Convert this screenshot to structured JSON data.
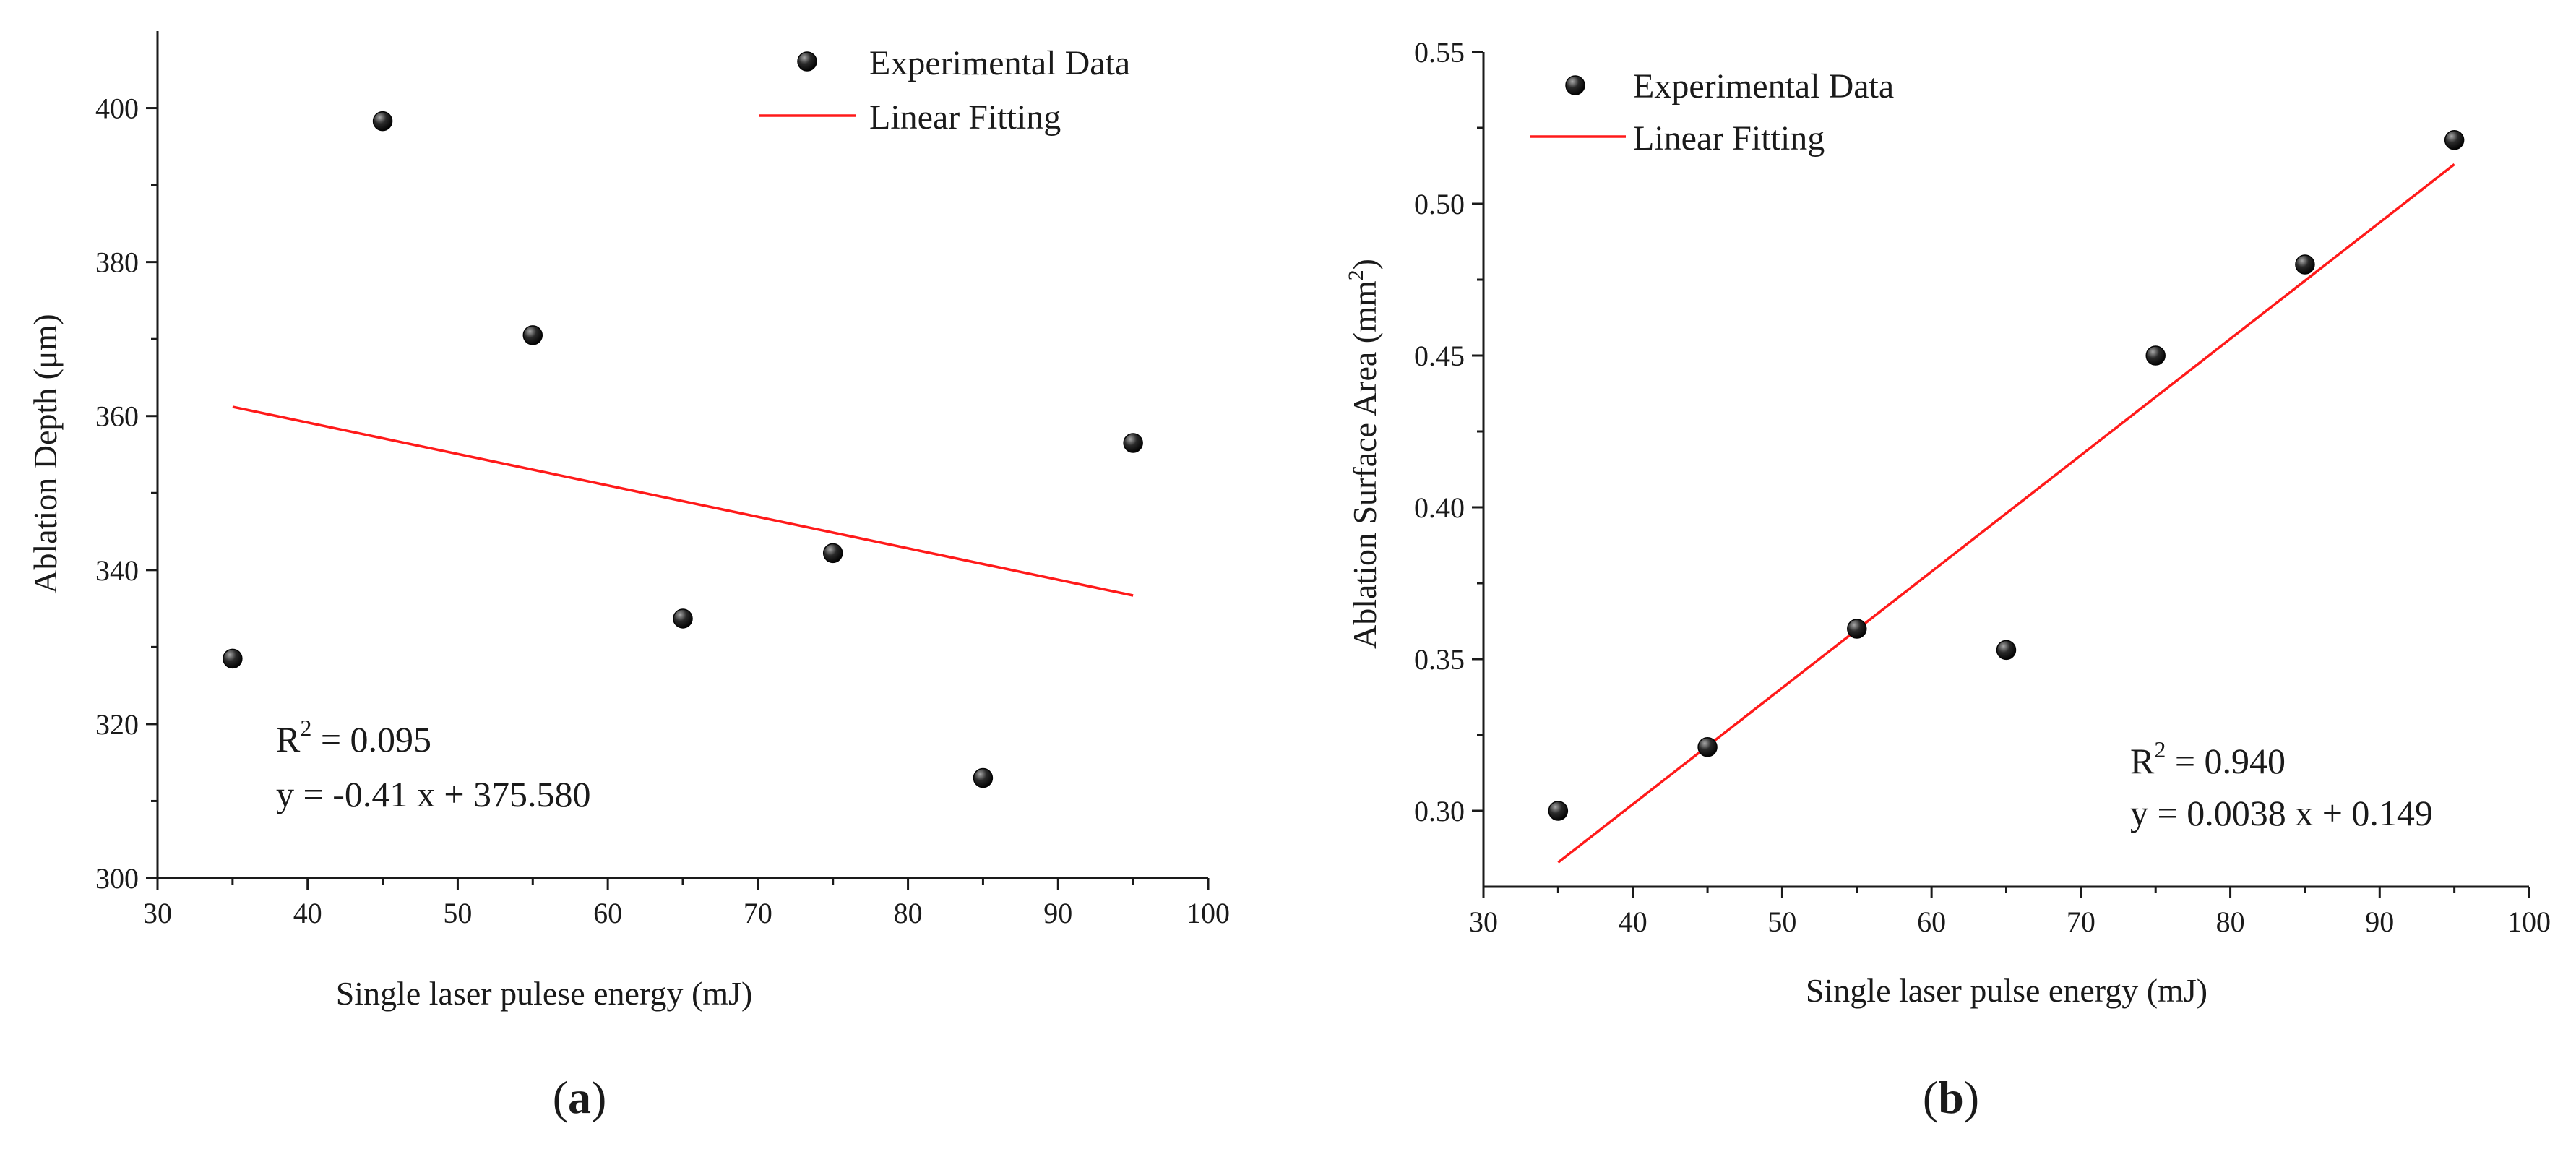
{
  "colors": {
    "fit_line": "#ff1a1a",
    "point_dark": "#050505",
    "point_light": "#9a9a9a",
    "axis": "#1a1a1a"
  },
  "chart_data": [
    {
      "type": "scatter",
      "xlabel": "Single laser pulese energy (mJ)",
      "ylabel": "Ablation Depth (μm)",
      "xlim": [
        30,
        100
      ],
      "ylim": [
        300,
        410
      ],
      "xticks": [
        30,
        40,
        50,
        60,
        70,
        80,
        90,
        100
      ],
      "yticks": [
        300,
        320,
        340,
        360,
        380,
        400
      ],
      "legend_position": "top-right",
      "grid": false,
      "series": [
        {
          "name": "Experimental Data",
          "kind": "scatter",
          "points": [
            [
              35,
              328.5
            ],
            [
              45,
              398.3
            ],
            [
              55,
              370.5
            ],
            [
              65,
              333.7
            ],
            [
              75,
              342.2
            ],
            [
              85,
              313.0
            ],
            [
              95,
              356.5
            ]
          ]
        },
        {
          "name": "Linear Fitting",
          "kind": "line",
          "points": [
            [
              35,
              361.2
            ],
            [
              95,
              336.7
            ]
          ]
        }
      ],
      "annotations": {
        "r2_label": "R",
        "r2_exp": "2",
        "r2_value": " = 0.095",
        "equation": "y = -0.41 x + 375.580"
      },
      "panel_label": {
        "open": "(",
        "letter": "a",
        "close": ")"
      }
    },
    {
      "type": "scatter",
      "xlabel": "Single laser pulse energy (mJ)",
      "ylabel_main": "Ablation Surface Area (mm",
      "ylabel_exp": "2",
      "ylabel_close": ")",
      "xlim": [
        30,
        100
      ],
      "ylim": [
        0.275,
        0.55
      ],
      "xticks": [
        30,
        40,
        50,
        60,
        70,
        80,
        90,
        100
      ],
      "yticks": [
        0.3,
        0.35,
        0.4,
        0.45,
        0.5,
        0.55
      ],
      "ytick_labels": [
        "0.30",
        "0.35",
        "0.40",
        "0.45",
        "0.50",
        "0.55"
      ],
      "legend_position": "top-left",
      "grid": false,
      "series": [
        {
          "name": "Experimental Data",
          "kind": "scatter",
          "points": [
            [
              35,
              0.3
            ],
            [
              45,
              0.321
            ],
            [
              55,
              0.36
            ],
            [
              65,
              0.353
            ],
            [
              75,
              0.45
            ],
            [
              85,
              0.48
            ],
            [
              95,
              0.521
            ]
          ]
        },
        {
          "name": "Linear Fitting",
          "kind": "line",
          "points": [
            [
              35,
              0.283
            ],
            [
              95,
              0.513
            ]
          ]
        }
      ],
      "annotations": {
        "r2_label": "R",
        "r2_exp": "2",
        "r2_value": " = 0.940",
        "equation": "y = 0.0038 x + 0.149"
      },
      "panel_label": {
        "open": "(",
        "letter": "b",
        "close": ")"
      }
    }
  ]
}
